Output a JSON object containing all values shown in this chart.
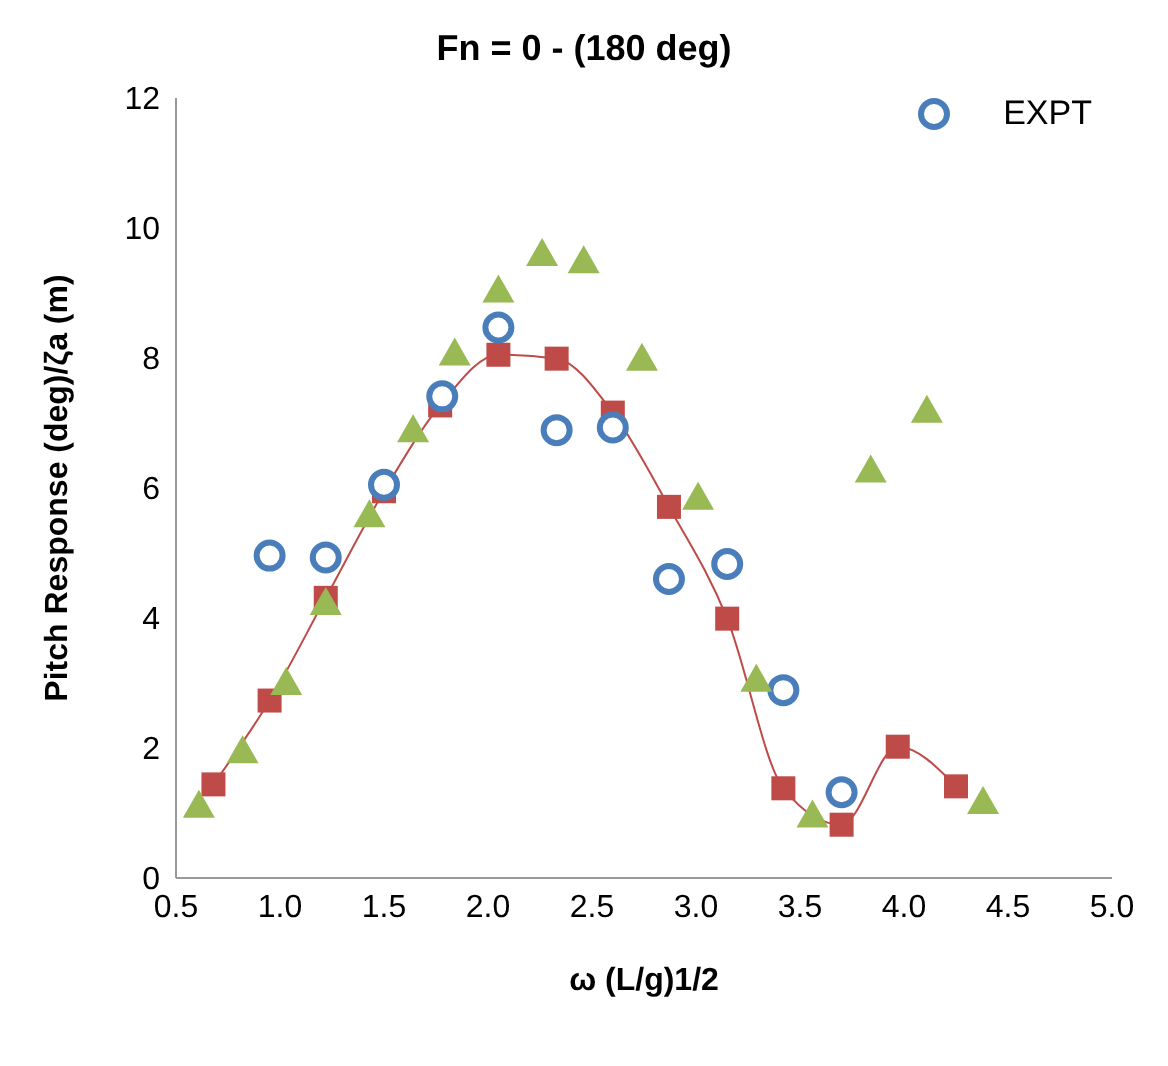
{
  "chart_data": {
    "type": "line",
    "title": "Fn = 0 - (180 deg)",
    "xlabel": "ω (L/g)1/2",
    "ylabel": "Pitch Response (deg)/ζa (m)",
    "xlim": [
      0.5,
      5
    ],
    "xticks": [
      0.5,
      {
        "value": 1,
        "label": "1.0"
      },
      1.5,
      {
        "value": 2,
        "label": "2.0"
      },
      2.5,
      {
        "value": 3,
        "label": "3.0"
      },
      3.5,
      {
        "value": 4,
        "label": "4.0"
      },
      4.5,
      {
        "value": 5,
        "label": "5.0"
      }
    ],
    "ylim": [
      0,
      12
    ],
    "yticks": [
      0,
      2,
      4,
      6,
      8,
      10,
      12
    ],
    "grid": false,
    "legend": "top right",
    "series": [
      {
        "marker": "square",
        "color": "#be4b48",
        "x": [
          0.68,
          0.95,
          1.22,
          1.5,
          1.77,
          2.05,
          2.33,
          2.6,
          2.87,
          3.15,
          3.42,
          3.7,
          3.97,
          4.25
        ],
        "values": [
          1.44,
          2.73,
          4.31,
          5.95,
          7.27,
          8.05,
          7.99,
          7.16,
          5.71,
          3.99,
          1.38,
          0.82,
          2.02,
          1.41
        ]
      },
      {
        "type": "scatter",
        "marker": "circle",
        "name": "EXPT",
        "color": "#4a7ebb",
        "x": [
          0.95,
          1.22,
          1.5,
          1.78,
          2.05,
          2.33,
          2.6,
          2.87,
          3.15,
          3.42,
          3.7
        ],
        "values": [
          4.96,
          4.93,
          6.05,
          7.41,
          8.47,
          6.89,
          6.93,
          4.6,
          4.83,
          2.89,
          1.32
        ]
      },
      {
        "type": "scatter",
        "marker": "triangle",
        "color": "#98b954",
        "x": [
          0.61,
          0.82,
          1.03,
          1.22,
          1.43,
          1.64,
          1.84,
          2.05,
          2.26,
          2.46,
          2.74,
          3.01,
          3.29,
          3.56,
          3.84,
          4.11,
          4.38
        ],
        "values": [
          1.11,
          1.95,
          3.0,
          4.23,
          5.58,
          6.89,
          8.07,
          9.04,
          9.6,
          9.49,
          7.99,
          5.85,
          3.05,
          0.96,
          6.27,
          7.19,
          1.17
        ]
      }
    ]
  }
}
